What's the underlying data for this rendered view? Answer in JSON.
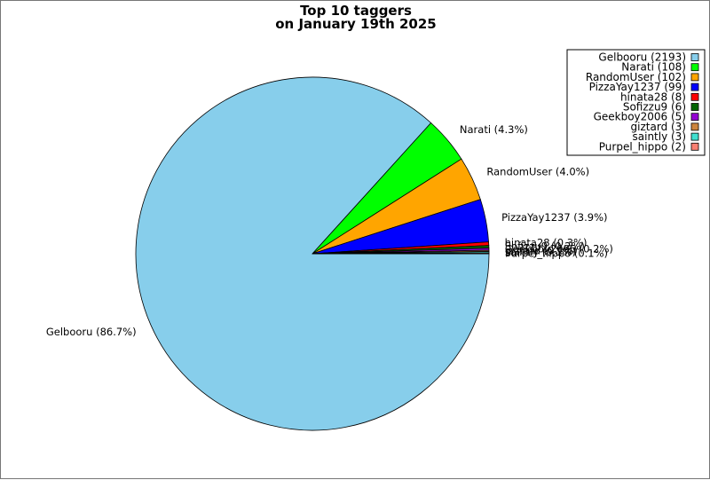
{
  "chart_data": {
    "type": "pie",
    "title": "Top 10 taggers",
    "subtitle": "on January 19th 2025",
    "slices": [
      {
        "name": "Gelbooru",
        "value": 2193,
        "percent_label": "86.7%",
        "color": "#87ceeb"
      },
      {
        "name": "Narati",
        "value": 108,
        "percent_label": "4.3%",
        "color": "#00ff00"
      },
      {
        "name": "RandomUser",
        "value": 102,
        "percent_label": "4.0%",
        "color": "#ffa500"
      },
      {
        "name": "PizzaYay1237",
        "value": 99,
        "percent_label": "3.9%",
        "color": "#0000ff"
      },
      {
        "name": "hinata28",
        "value": 8,
        "percent_label": "0.3%",
        "color": "#ff0000"
      },
      {
        "name": "Sofizzu9",
        "value": 6,
        "percent_label": "0.2%",
        "color": "#006400"
      },
      {
        "name": "Geekboy2006",
        "value": 5,
        "percent_label": "0.2%",
        "color": "#9400d3"
      },
      {
        "name": "giztard",
        "value": 3,
        "percent_label": "0.1%",
        "color": "#cd853f"
      },
      {
        "name": "saintly",
        "value": 3,
        "percent_label": "0.1%",
        "color": "#40e0d0"
      },
      {
        "name": "Purpel_hippo",
        "value": 2,
        "percent_label": "0.1%",
        "color": "#fa8072"
      }
    ],
    "legend_placement": "top-right"
  }
}
